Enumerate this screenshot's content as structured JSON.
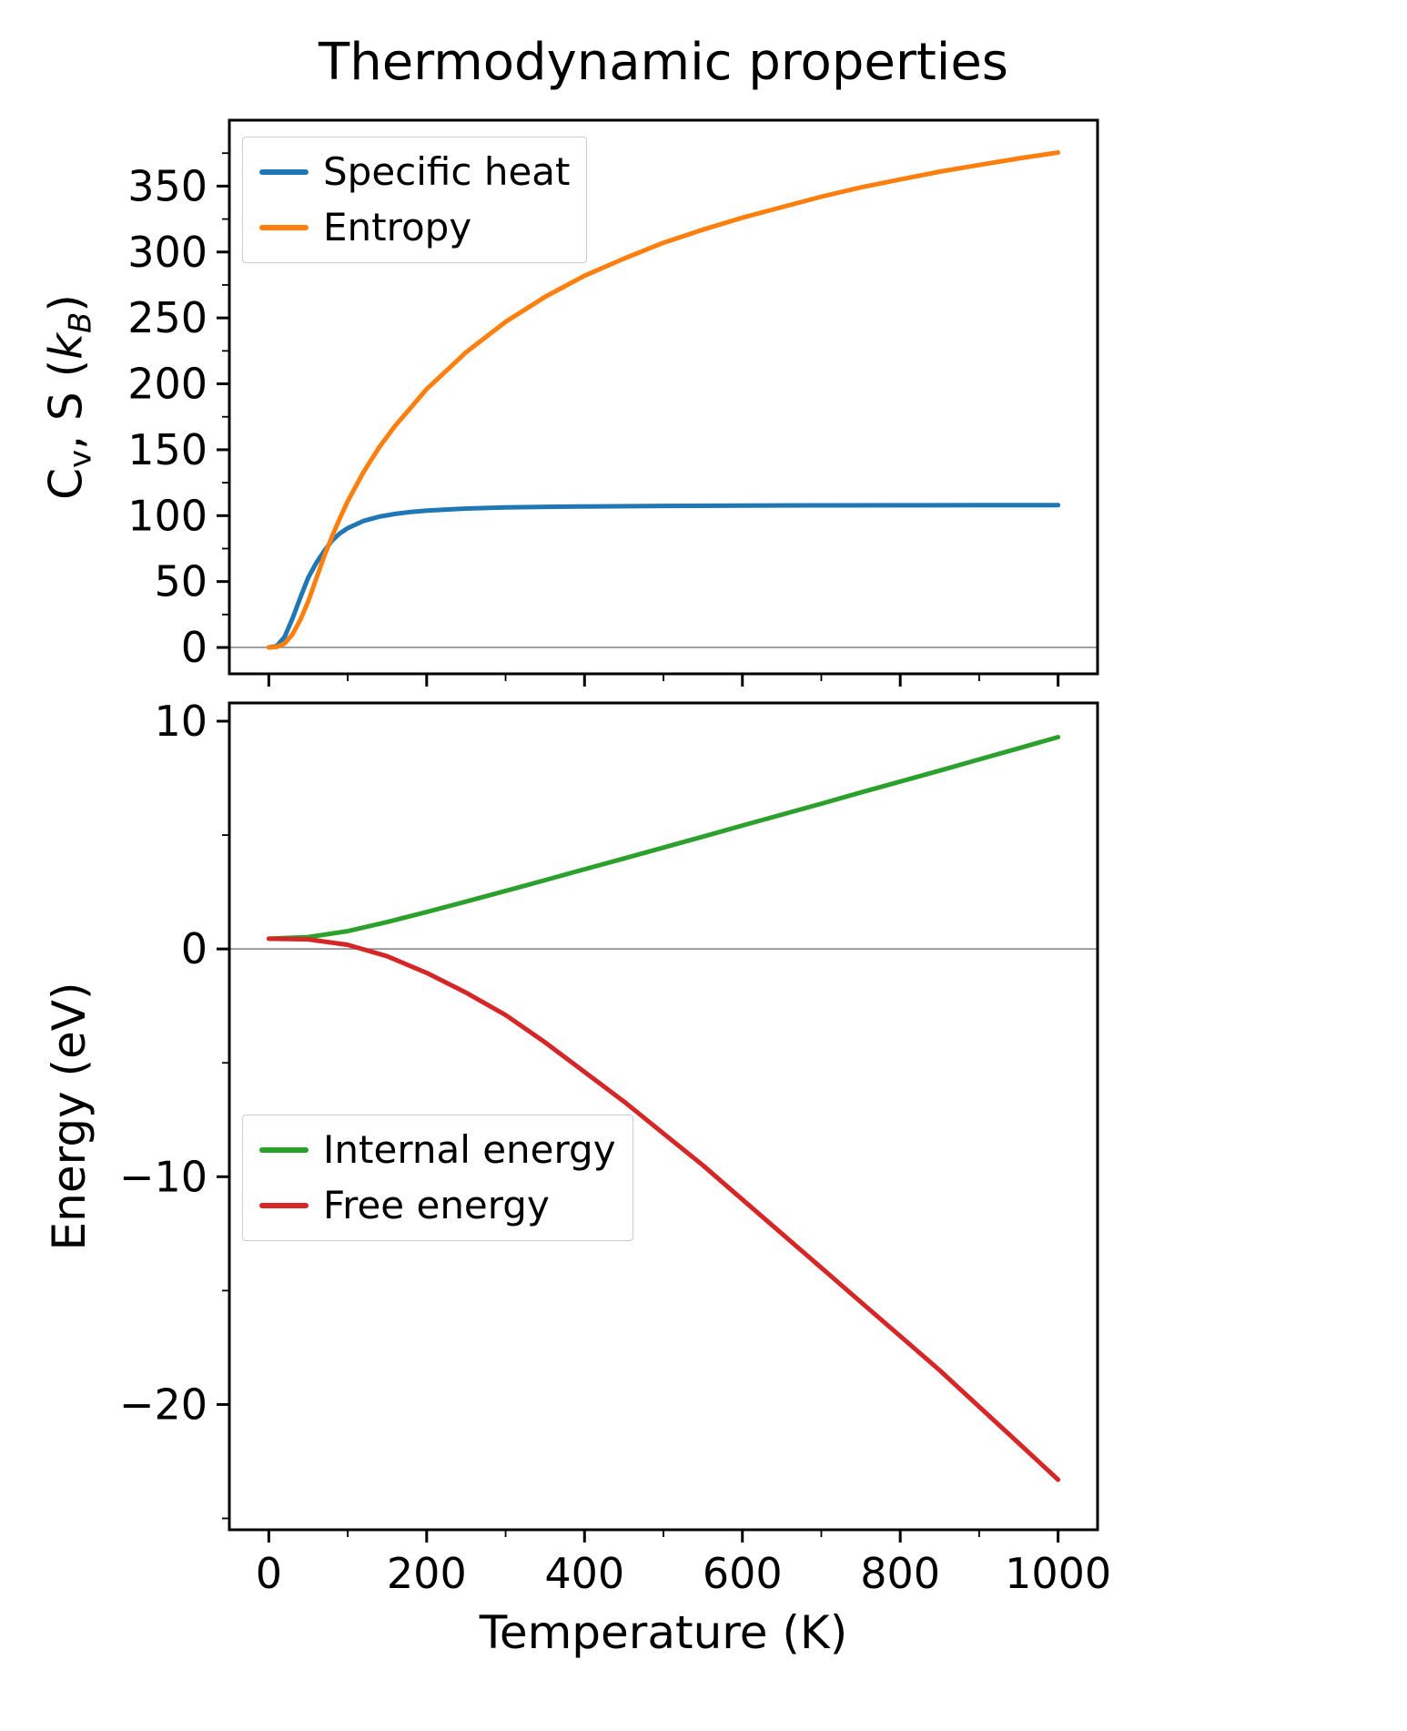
{
  "figure": {
    "title": "Thermodynamic properties",
    "xlabel": "Temperature (K)",
    "background": "#ffffff"
  },
  "chart_data": [
    {
      "type": "line",
      "ylabel": "Cv, S (kB)",
      "ylabel_rich": [
        {
          "t": "C"
        },
        {
          "t": "v",
          "sub": true
        },
        {
          "t": ", S ("
        },
        {
          "t": "k",
          "italic": true
        },
        {
          "t": "B",
          "sub": true,
          "italic": true
        },
        {
          "t": ")"
        }
      ],
      "xlim": [
        -50,
        1050
      ],
      "ylim": [
        -20,
        400
      ],
      "xticks": [
        0,
        200,
        400,
        600,
        800,
        1000
      ],
      "show_xtick_labels": false,
      "yticks": [
        0,
        50,
        100,
        150,
        200,
        250,
        300,
        350
      ],
      "grid": false,
      "zero_line": true,
      "zero_line_color": "#808080",
      "legend_position": "upper-left",
      "series": [
        {
          "name": "Specific heat",
          "color": "#1f77b4",
          "x": [
            0,
            10,
            20,
            30,
            40,
            50,
            60,
            70,
            80,
            90,
            100,
            120,
            140,
            160,
            180,
            200,
            250,
            300,
            350,
            400,
            500,
            600,
            700,
            800,
            900,
            1000
          ],
          "y": [
            0,
            1,
            8,
            22,
            38,
            53,
            64,
            73,
            81,
            86.5,
            90.5,
            96,
            99.2,
            101.3,
            102.8,
            103.8,
            105.4,
            106.2,
            106.7,
            107.0,
            107.4,
            107.6,
            107.8,
            107.85,
            107.9,
            108
          ]
        },
        {
          "name": "Entropy",
          "color": "#ff7f0e",
          "x": [
            0,
            10,
            20,
            30,
            40,
            50,
            60,
            70,
            80,
            90,
            100,
            120,
            140,
            160,
            180,
            200,
            250,
            300,
            350,
            400,
            450,
            500,
            550,
            600,
            650,
            700,
            750,
            800,
            850,
            900,
            950,
            1000
          ],
          "y": [
            0,
            0.4,
            3,
            10,
            21,
            35,
            52,
            69,
            84,
            98,
            111,
            133,
            152,
            168,
            182,
            196,
            224,
            247,
            266,
            282,
            295,
            307,
            317,
            326,
            334,
            342,
            349,
            355,
            361,
            366,
            371,
            375.5
          ]
        }
      ]
    },
    {
      "type": "line",
      "ylabel": "Energy (eV)",
      "xlim": [
        -50,
        1050
      ],
      "ylim": [
        -25.5,
        10.8
      ],
      "xticks": [
        0,
        200,
        400,
        600,
        800,
        1000
      ],
      "show_xtick_labels": true,
      "yticks": [
        10,
        0,
        -10,
        -20
      ],
      "grid": false,
      "zero_line": true,
      "zero_line_color": "#808080",
      "legend_position": "lower-left",
      "series": [
        {
          "name": "Internal energy",
          "color": "#2ca02c",
          "x": [
            0,
            50,
            100,
            150,
            200,
            250,
            300,
            350,
            400,
            450,
            500,
            550,
            600,
            650,
            700,
            750,
            800,
            850,
            900,
            950,
            1000
          ],
          "y": [
            0.45,
            0.52,
            0.78,
            1.18,
            1.62,
            2.08,
            2.55,
            3.02,
            3.5,
            3.97,
            4.45,
            4.93,
            5.42,
            5.9,
            6.38,
            6.87,
            7.35,
            7.83,
            8.32,
            8.81,
            9.3
          ]
        },
        {
          "name": "Free energy",
          "color": "#d62728",
          "x": [
            0,
            50,
            100,
            150,
            200,
            250,
            300,
            350,
            400,
            450,
            500,
            550,
            600,
            650,
            700,
            750,
            800,
            850,
            900,
            950,
            1000
          ],
          "y": [
            0.45,
            0.42,
            0.18,
            -0.32,
            -1.05,
            -1.92,
            -2.9,
            -4.1,
            -5.4,
            -6.7,
            -8.1,
            -9.5,
            -11.0,
            -12.5,
            -14.0,
            -15.5,
            -17.0,
            -18.5,
            -20.1,
            -21.7,
            -23.3
          ]
        }
      ]
    }
  ]
}
